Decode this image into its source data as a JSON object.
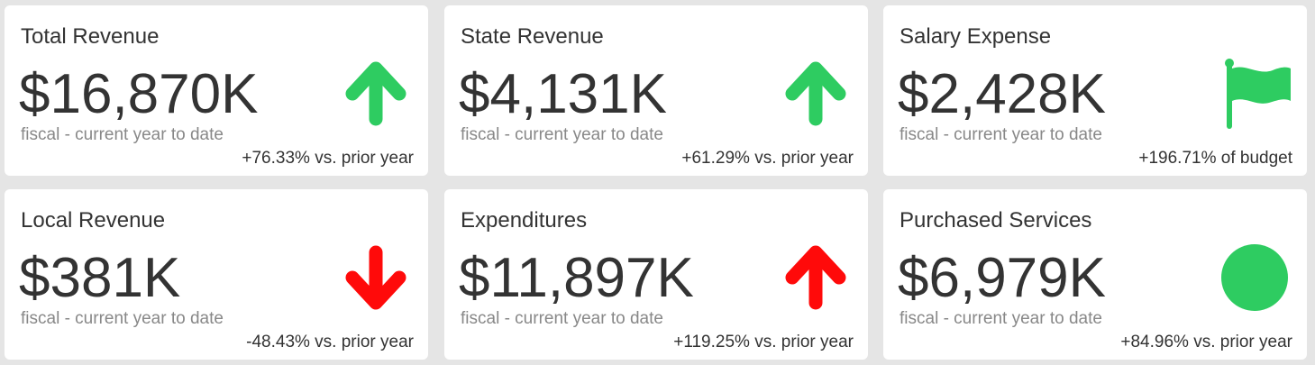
{
  "colors": {
    "positive": "#2ecc61",
    "negative": "#ff0a0a",
    "card_bg": "#ffffff",
    "page_bg": "#e5e5e5"
  },
  "cards": [
    {
      "title": "Total Revenue",
      "value": "$16,870K",
      "subtitle": "fiscal - current year to date",
      "comparison": "+76.33% vs. prior year",
      "icon": "arrow-up-icon",
      "icon_color": "#2ecc61"
    },
    {
      "title": "State Revenue",
      "value": "$4,131K",
      "subtitle": "fiscal - current year to date",
      "comparison": "+61.29% vs. prior year",
      "icon": "arrow-up-icon",
      "icon_color": "#2ecc61"
    },
    {
      "title": "Salary Expense",
      "value": "$2,428K",
      "subtitle": "fiscal - current year to date",
      "comparison": "+196.71% of budget",
      "icon": "flag-icon",
      "icon_color": "#2ecc61"
    },
    {
      "title": "Local Revenue",
      "value": "$381K",
      "subtitle": "fiscal - current year to date",
      "comparison": "-48.43% vs. prior year",
      "icon": "arrow-down-icon",
      "icon_color": "#ff0a0a"
    },
    {
      "title": "Expenditures",
      "value": "$11,897K",
      "subtitle": "fiscal - current year to date",
      "comparison": "+119.25% vs. prior year",
      "icon": "arrow-up-icon",
      "icon_color": "#ff0a0a"
    },
    {
      "title": "Purchased Services",
      "value": "$6,979K",
      "subtitle": "fiscal - current year to date",
      "comparison": "+84.96% vs. prior year",
      "icon": "circle-icon",
      "icon_color": "#2ecc61"
    }
  ]
}
